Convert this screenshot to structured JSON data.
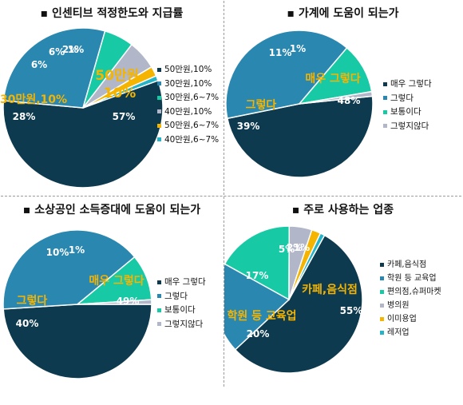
{
  "chart_data": [
    {
      "type": "pie",
      "title": "▪ 인센티브 적정한도와 지급률",
      "categories": [
        "50만원,10%",
        "30만원,10%",
        "30만원,6~7%",
        "40만원,10%",
        "50만원,6~7%",
        "40만원,6~7%"
      ],
      "values": [
        57,
        28,
        6,
        6,
        2,
        1
      ],
      "value_labels": [
        "57%",
        "28%",
        "6%",
        "6%",
        "2%",
        "1%"
      ],
      "colors": [
        "#0d3a4f",
        "#2a87b0",
        "#18c9a6",
        "#b1b6c8",
        "#f5b400",
        "#25b3c7"
      ],
      "highlight_labels": [
        "50만원,\n10%",
        "30만원,10%",
        "",
        "",
        "",
        ""
      ],
      "legend": [
        "50만원,10%",
        "30만원,10%",
        "30만원,6~7%",
        "40만원,10%",
        "50만원,6~7%",
        "40만원,6~7%"
      ]
    },
    {
      "type": "pie",
      "title": "▪ 가계에 도움이 되는가",
      "categories": [
        "매우 그렇다",
        "그렇다",
        "보통이다",
        "그렇지않다"
      ],
      "values": [
        48,
        39,
        11,
        1
      ],
      "value_labels": [
        "48%",
        "39%",
        "11%",
        "1%"
      ],
      "colors": [
        "#0d3a4f",
        "#2a87b0",
        "#18c9a6",
        "#b1b6c8"
      ],
      "highlight_labels": [
        "매우 그렇다",
        "그렇다",
        "",
        ""
      ],
      "legend": [
        "매우 그렇다",
        "그렇다",
        "보통이다",
        "그렇지않다"
      ]
    },
    {
      "type": "pie",
      "title": "▪ 소상공인 소득증대에 도움이 되는가",
      "categories": [
        "매우 그렇다",
        "그렇다",
        "보통이다",
        "그렇지않다"
      ],
      "values": [
        49,
        40,
        10,
        1
      ],
      "value_labels": [
        "49%",
        "40%",
        "10%",
        "1%"
      ],
      "colors": [
        "#0d3a4f",
        "#2a87b0",
        "#18c9a6",
        "#b1b6c8"
      ],
      "highlight_labels": [
        "매우 그렇다",
        "그렇다",
        "",
        ""
      ],
      "legend": [
        "매우 그렇다",
        "그렇다",
        "보통이다",
        "그렇지않다"
      ]
    },
    {
      "type": "pie",
      "title": "▪ 주로 사용하는 업종",
      "categories": [
        "카페,음식점",
        "학원 등 교육업",
        "편의점,슈퍼마켓",
        "병의원",
        "이미용업",
        "레저업"
      ],
      "values": [
        55,
        20,
        17,
        5,
        2,
        1
      ],
      "value_labels": [
        "55%",
        "20%",
        "17%",
        "5%",
        "2%",
        "1%"
      ],
      "colors": [
        "#0d3a4f",
        "#2a87b0",
        "#18c9a6",
        "#b1b6c8",
        "#f5b400",
        "#25b3c7"
      ],
      "highlight_labels": [
        "카페,음식점",
        "학원 등 교육업",
        "",
        "",
        "",
        ""
      ],
      "legend": [
        "카페,음식점",
        "학원 등 교육업",
        "편의점,슈퍼마켓",
        "병의원",
        "이미용업",
        "레저업"
      ]
    }
  ]
}
